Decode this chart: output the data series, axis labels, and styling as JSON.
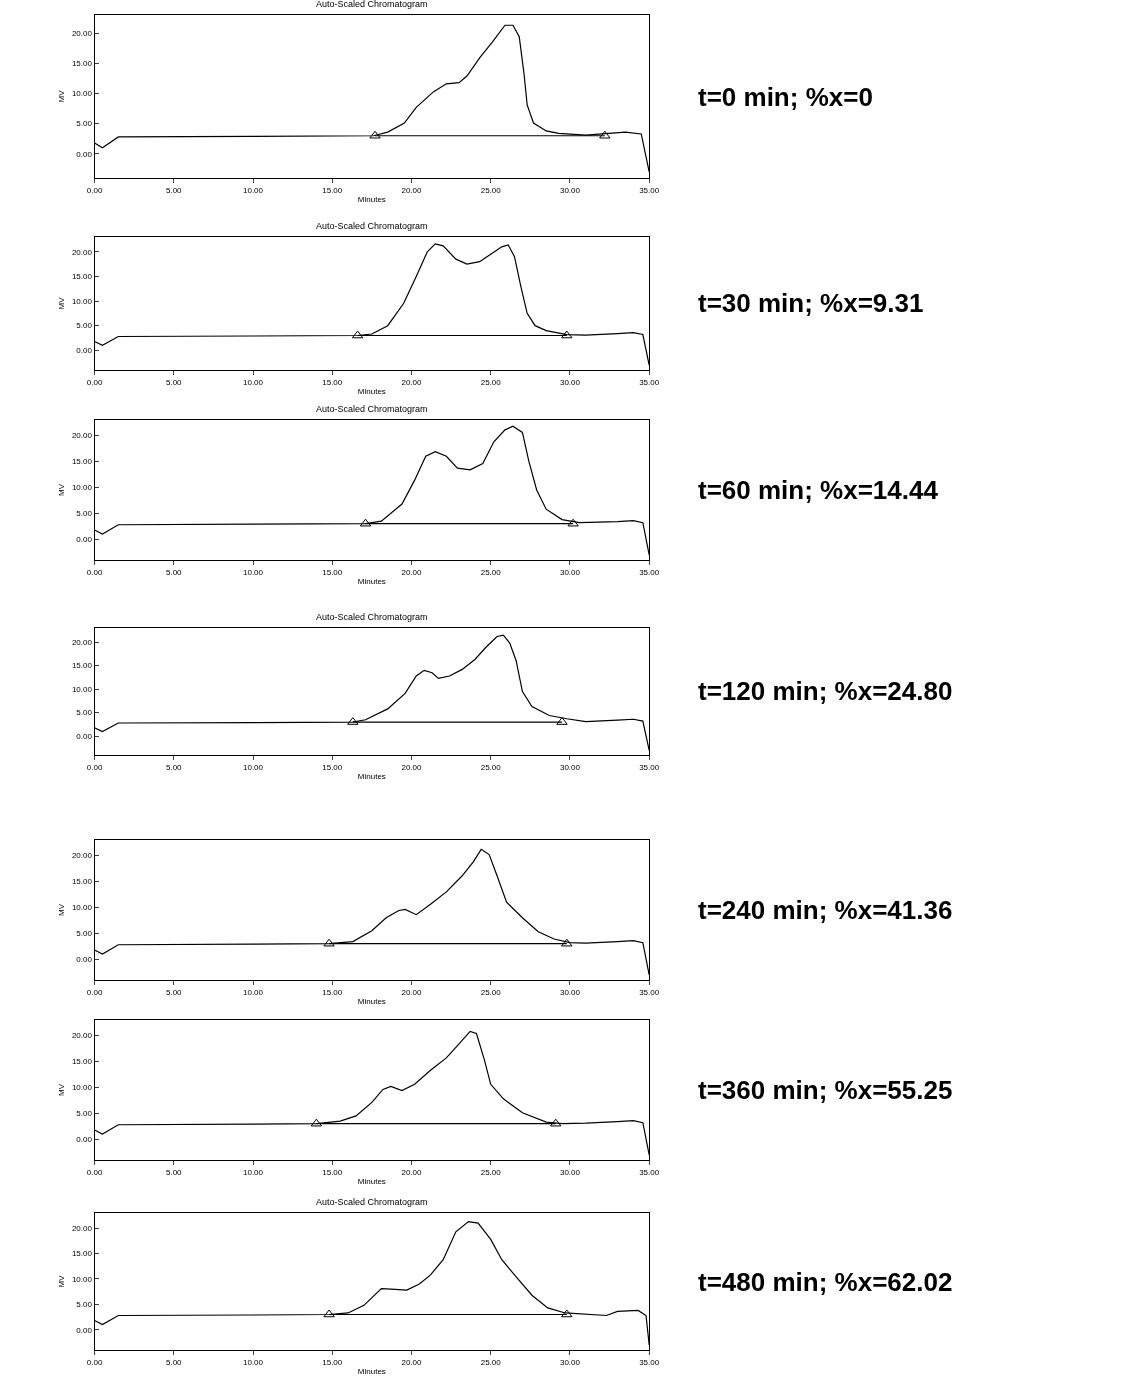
{
  "chart_data": [
    {
      "type": "line",
      "title": "Auto-Scaled Chromatogram",
      "xlabel": "Minutes",
      "ylabel": "MV",
      "xlim": [
        0,
        35
      ],
      "ylim": [
        -4,
        23
      ],
      "xticks": [
        {
          "value": 0,
          "label": "0.00"
        },
        {
          "value": 5,
          "label": "5.00"
        },
        {
          "value": 10,
          "label": "10.00"
        },
        {
          "value": 15,
          "label": "15.00"
        },
        {
          "value": 20,
          "label": "20.00"
        },
        {
          "value": 25,
          "label": "25.00"
        },
        {
          "value": 30,
          "label": "30.00"
        },
        {
          "value": 35,
          "label": "35.00"
        }
      ],
      "yticks": [
        {
          "value": 0,
          "label": "0.00"
        },
        {
          "value": 5,
          "label": "5.00"
        },
        {
          "value": 10,
          "label": "10.00"
        },
        {
          "value": 15,
          "label": "15.00"
        },
        {
          "value": 20,
          "label": "20.00"
        }
      ],
      "annotations": [
        "t=0 min; %x=0"
      ],
      "series": [
        {
          "color": "#000000",
          "x": [
            0,
            0.5,
            1.5,
            10,
            17.6,
            18.5,
            19.55,
            20.3,
            21.4,
            22.2,
            23.0,
            23.5,
            24.3,
            25.1,
            25.9,
            26.4,
            26.8,
            27.1,
            27.3,
            27.7,
            28.5,
            29.3,
            31,
            33.5,
            34.5,
            35
          ],
          "values": [
            1.8,
            1.0,
            2.8,
            2.9,
            3.0,
            3.6,
            5.1,
            7.7,
            10.3,
            11.6,
            11.8,
            12.9,
            15.9,
            18.5,
            21.3,
            21.3,
            19.4,
            13.3,
            8.1,
            5.1,
            3.8,
            3.4,
            3.1,
            3.6,
            3.3,
            -3
          ]
        },
        {
          "type": "line",
          "marker": "triangle",
          "color": "#000000",
          "x": [
            17.7,
            32.2
          ],
          "values": [
            3.0,
            3.0
          ]
        }
      ]
    },
    {
      "type": "line",
      "title": "Auto-Scaled Chromatogram",
      "xlabel": "Minutes",
      "ylabel": "MV",
      "xlim": [
        0,
        35
      ],
      "ylim": [
        -4,
        23
      ],
      "xticks": [
        {
          "value": 0,
          "label": "0.00"
        },
        {
          "value": 5,
          "label": "5.00"
        },
        {
          "value": 10,
          "label": "10.00"
        },
        {
          "value": 15,
          "label": "15.00"
        },
        {
          "value": 20,
          "label": "20.00"
        },
        {
          "value": 25,
          "label": "25.00"
        },
        {
          "value": 30,
          "label": "30.00"
        },
        {
          "value": 35,
          "label": "35.00"
        }
      ],
      "yticks": [
        {
          "value": 0,
          "label": "0.00"
        },
        {
          "value": 5,
          "label": "5.00"
        },
        {
          "value": 10,
          "label": "10.00"
        },
        {
          "value": 15,
          "label": "15.00"
        },
        {
          "value": 20,
          "label": "20.00"
        }
      ],
      "annotations": [
        "t=30 min; %x=9.31"
      ],
      "series": [
        {
          "color": "#000000",
          "x": [
            0,
            0.5,
            1.5,
            10,
            16.6,
            17.5,
            18.5,
            19.5,
            20.3,
            21.0,
            21.5,
            22.0,
            22.8,
            23.5,
            24.3,
            25.0,
            25.7,
            26.1,
            26.5,
            26.9,
            27.3,
            27.8,
            28.5,
            29.8,
            31,
            33,
            34,
            34.6,
            35
          ],
          "values": [
            1.8,
            1.0,
            2.8,
            2.9,
            3.0,
            3.3,
            5.0,
            9.5,
            15.0,
            20.0,
            21.6,
            21.2,
            18.5,
            17.5,
            18.0,
            19.5,
            21.0,
            21.4,
            19.0,
            13.0,
            7.5,
            5.0,
            4.0,
            3.2,
            3.1,
            3.4,
            3.6,
            3.2,
            -3
          ]
        },
        {
          "type": "line",
          "marker": "triangle",
          "color": "#000000",
          "x": [
            16.6,
            29.8
          ],
          "values": [
            3.0,
            3.0
          ]
        }
      ]
    },
    {
      "type": "line",
      "title": "Auto-Scaled Chromatogram",
      "xlabel": "Minutes",
      "ylabel": "MV",
      "xlim": [
        0,
        35
      ],
      "ylim": [
        -4,
        23
      ],
      "xticks": [
        {
          "value": 0,
          "label": "0.00"
        },
        {
          "value": 5,
          "label": "5.00"
        },
        {
          "value": 10,
          "label": "10.00"
        },
        {
          "value": 15,
          "label": "15.00"
        },
        {
          "value": 20,
          "label": "20.00"
        },
        {
          "value": 25,
          "label": "25.00"
        },
        {
          "value": 30,
          "label": "30.00"
        },
        {
          "value": 35,
          "label": "35.00"
        }
      ],
      "yticks": [
        {
          "value": 0,
          "label": "0.00"
        },
        {
          "value": 5,
          "label": "5.00"
        },
        {
          "value": 10,
          "label": "10.00"
        },
        {
          "value": 15,
          "label": "15.00"
        },
        {
          "value": 20,
          "label": "20.00"
        }
      ],
      "annotations": [
        "t=60 min; %x=14.44"
      ],
      "series": [
        {
          "color": "#000000",
          "x": [
            0,
            0.5,
            1.5,
            10,
            17.1,
            18.1,
            19.4,
            20.2,
            20.9,
            21.5,
            22.2,
            22.9,
            23.7,
            24.5,
            25.2,
            25.9,
            26.4,
            27.0,
            27.4,
            27.9,
            28.5,
            29.5,
            30.6,
            33,
            34,
            34.6,
            35
          ],
          "values": [
            1.8,
            1.0,
            2.8,
            2.9,
            3.0,
            3.5,
            6.8,
            11.4,
            16.0,
            16.9,
            16.0,
            13.7,
            13.4,
            14.6,
            18.8,
            21.1,
            21.8,
            20.6,
            15.1,
            9.5,
            5.8,
            3.8,
            3.2,
            3.4,
            3.6,
            3.2,
            -3
          ]
        },
        {
          "type": "line",
          "marker": "triangle",
          "color": "#000000",
          "x": [
            17.1,
            30.2
          ],
          "values": [
            3.0,
            3.0
          ]
        }
      ]
    },
    {
      "type": "line",
      "title": "Auto-Scaled Chromatogram",
      "xlabel": "Minutes",
      "xlim": [
        0,
        35
      ],
      "ylim": [
        -4,
        23
      ],
      "xticks": [
        {
          "value": 0,
          "label": "0.00"
        },
        {
          "value": 5,
          "label": "5.00"
        },
        {
          "value": 10,
          "label": "10.00"
        },
        {
          "value": 15,
          "label": "15.00"
        },
        {
          "value": 20,
          "label": "20.00"
        },
        {
          "value": 25,
          "label": "25.00"
        },
        {
          "value": 30,
          "label": "30.00"
        },
        {
          "value": 35,
          "label": "35.00"
        }
      ],
      "yticks": [
        {
          "value": 0,
          "label": "0.00"
        },
        {
          "value": 5,
          "label": "5.00"
        },
        {
          "value": 10,
          "label": "10.00"
        },
        {
          "value": 15,
          "label": "15.00"
        },
        {
          "value": 20,
          "label": "20.00"
        }
      ],
      "annotations": [
        "t=120 min; %x=24.80"
      ],
      "series": [
        {
          "color": "#000000",
          "x": [
            0,
            0.5,
            1.5,
            10,
            16.3,
            17.1,
            18.5,
            19.6,
            20.3,
            20.8,
            21.3,
            21.7,
            22.4,
            23.2,
            24.0,
            24.7,
            25.4,
            25.8,
            26.2,
            26.6,
            27.0,
            27.6,
            28.7,
            29.8,
            31,
            33,
            34,
            34.6,
            35
          ],
          "values": [
            1.8,
            1.0,
            2.8,
            2.9,
            3.0,
            3.5,
            5.8,
            9.1,
            12.8,
            14.0,
            13.5,
            12.3,
            12.8,
            14.2,
            16.3,
            18.9,
            21.2,
            21.5,
            19.8,
            16.1,
            9.5,
            6.3,
            4.4,
            3.7,
            3.1,
            3.4,
            3.6,
            3.2,
            -3
          ]
        },
        {
          "type": "line",
          "marker": "triangle",
          "color": "#000000",
          "x": [
            16.3,
            29.5
          ],
          "values": [
            3.0,
            3.0
          ]
        }
      ]
    },
    {
      "type": "line",
      "xlabel": "Minutes",
      "ylabel": "MV",
      "xlim": [
        0,
        35
      ],
      "ylim": [
        -4,
        23
      ],
      "xticks": [
        {
          "value": 0,
          "label": "0.00"
        },
        {
          "value": 5,
          "label": "5.00"
        },
        {
          "value": 10,
          "label": "10.00"
        },
        {
          "value": 15,
          "label": "15.00"
        },
        {
          "value": 20,
          "label": "20.00"
        },
        {
          "value": 25,
          "label": "25.00"
        },
        {
          "value": 30,
          "label": "30.00"
        },
        {
          "value": 35,
          "label": "35.00"
        }
      ],
      "yticks": [
        {
          "value": 0,
          "label": "0.00"
        },
        {
          "value": 5,
          "label": "5.00"
        },
        {
          "value": 10,
          "label": "10.00"
        },
        {
          "value": 15,
          "label": "15.00"
        },
        {
          "value": 20,
          "label": "20.00"
        }
      ],
      "annotations": [
        "t=240 min; %x=41.36"
      ],
      "series": [
        {
          "color": "#000000",
          "x": [
            0,
            0.5,
            1.5,
            10,
            14.8,
            16.3,
            17.5,
            18.4,
            19.2,
            19.6,
            20.3,
            21.2,
            22.2,
            23.2,
            23.9,
            24.4,
            24.9,
            25.4,
            26.0,
            27.0,
            28.0,
            29.0,
            30.0,
            31,
            33,
            34,
            34.6,
            35
          ],
          "values": [
            1.8,
            1.0,
            2.8,
            2.9,
            3.0,
            3.4,
            5.5,
            8.0,
            9.4,
            9.6,
            8.6,
            10.6,
            13.0,
            16.1,
            18.8,
            21.2,
            20.2,
            16.1,
            11.0,
            8.0,
            5.3,
            3.9,
            3.2,
            3.1,
            3.4,
            3.6,
            3.2,
            -3
          ]
        },
        {
          "type": "line",
          "marker": "triangle",
          "color": "#000000",
          "x": [
            14.8,
            29.8
          ],
          "values": [
            3.0,
            3.0
          ]
        }
      ]
    },
    {
      "type": "line",
      "xlabel": "Minutes",
      "ylabel": "MV",
      "xlim": [
        0,
        35
      ],
      "ylim": [
        -4,
        23
      ],
      "xticks": [
        {
          "value": 0,
          "label": "0.00"
        },
        {
          "value": 5,
          "label": "5.00"
        },
        {
          "value": 10,
          "label": "10.00"
        },
        {
          "value": 15,
          "label": "15.00"
        },
        {
          "value": 20,
          "label": "20.00"
        },
        {
          "value": 25,
          "label": "25.00"
        },
        {
          "value": 30,
          "label": "30.00"
        },
        {
          "value": 35,
          "label": "35.00"
        }
      ],
      "yticks": [
        {
          "value": 0,
          "label": "0.00"
        },
        {
          "value": 5,
          "label": "5.00"
        },
        {
          "value": 10,
          "label": "10.00"
        },
        {
          "value": 15,
          "label": "15.00"
        },
        {
          "value": 20,
          "label": "20.00"
        }
      ],
      "annotations": [
        "t=360 min; %x=55.25"
      ],
      "series": [
        {
          "color": "#000000",
          "x": [
            0,
            0.5,
            1.5,
            10,
            14.0,
            15.5,
            16.5,
            17.5,
            18.2,
            18.7,
            19.4,
            20.2,
            21.2,
            22.2,
            23.0,
            23.7,
            24.1,
            24.6,
            25.0,
            25.8,
            27.0,
            28.5,
            29.5,
            31,
            33,
            34,
            34.6,
            35
          ],
          "values": [
            1.8,
            1.0,
            2.8,
            2.9,
            3.0,
            3.5,
            4.5,
            7.1,
            9.6,
            10.2,
            9.4,
            10.6,
            13.3,
            15.7,
            18.4,
            20.8,
            20.4,
            15.3,
            10.6,
            7.8,
            5.1,
            3.3,
            3.0,
            3.1,
            3.4,
            3.6,
            3.2,
            -3
          ]
        },
        {
          "type": "line",
          "marker": "triangle",
          "color": "#000000",
          "x": [
            14.0,
            29.1
          ],
          "values": [
            3.0,
            3.0
          ]
        }
      ]
    },
    {
      "type": "line",
      "title": "Auto-Scaled Chromatogram",
      "xlabel": "Minutes",
      "ylabel": "MV",
      "xlim": [
        0,
        35
      ],
      "ylim": [
        -4,
        23
      ],
      "xticks": [
        {
          "value": 0,
          "label": "0.00"
        },
        {
          "value": 5,
          "label": "5.00"
        },
        {
          "value": 10,
          "label": "10.00"
        },
        {
          "value": 15,
          "label": "15.00"
        },
        {
          "value": 20,
          "label": "20.00"
        },
        {
          "value": 25,
          "label": "25.00"
        },
        {
          "value": 30,
          "label": "30.00"
        },
        {
          "value": 35,
          "label": "35.00"
        }
      ],
      "yticks": [
        {
          "value": 0,
          "label": "0.00"
        },
        {
          "value": 5,
          "label": "5.00"
        },
        {
          "value": 10,
          "label": "10.00"
        },
        {
          "value": 15,
          "label": "15.00"
        },
        {
          "value": 20,
          "label": "20.00"
        }
      ],
      "annotations": [
        "t=480 min; %x=62.02"
      ],
      "series": [
        {
          "color": "#000000",
          "x": [
            0,
            0.5,
            1.5,
            10,
            14.8,
            16.0,
            17.0,
            18.1,
            18.7,
            19.7,
            20.5,
            21.2,
            22.0,
            22.8,
            23.6,
            24.2,
            25.0,
            25.7,
            26.5,
            27.6,
            28.6,
            29.7,
            32.3,
            33.0,
            34.3,
            34.8,
            35
          ],
          "values": [
            1.8,
            1.0,
            2.8,
            2.9,
            3.0,
            3.3,
            4.8,
            8.1,
            8.0,
            7.8,
            9.0,
            10.8,
            13.8,
            19.3,
            21.3,
            21.0,
            17.8,
            13.8,
            10.8,
            6.8,
            4.3,
            3.3,
            2.8,
            3.6,
            3.8,
            2.8,
            -3
          ]
        },
        {
          "type": "line",
          "marker": "triangle",
          "color": "#000000",
          "x": [
            14.8,
            29.8
          ],
          "values": [
            3.0,
            3.0
          ]
        }
      ]
    }
  ]
}
